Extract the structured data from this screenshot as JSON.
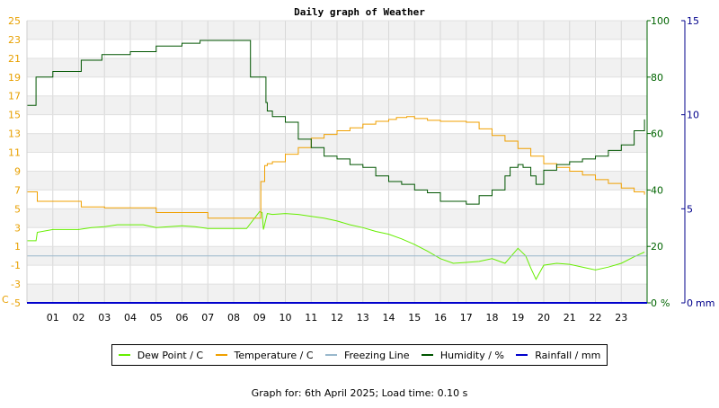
{
  "chart_data": {
    "type": "line",
    "title": "Daily graph of Weather",
    "left_axis": {
      "unit": "C",
      "ticks": [
        -5,
        -3,
        -1,
        1,
        3,
        5,
        7,
        9,
        11,
        13,
        15,
        17,
        19,
        21,
        23,
        25
      ],
      "range": [
        -5,
        25
      ],
      "color": "#e8a000"
    },
    "right_axis_1": {
      "unit": "%",
      "ticks": [
        0,
        20,
        40,
        60,
        80,
        100
      ],
      "range": [
        0,
        100
      ],
      "color": "#006400"
    },
    "right_axis_2": {
      "unit": "mm",
      "ticks": [
        0,
        5,
        10,
        15
      ],
      "range": [
        0,
        15
      ],
      "color": "#00008b"
    },
    "x_ticks": [
      "01",
      "02",
      "03",
      "04",
      "05",
      "06",
      "07",
      "08",
      "09",
      "10",
      "11",
      "12",
      "13",
      "14",
      "15",
      "16",
      "17",
      "18",
      "19",
      "20",
      "21",
      "22",
      "23"
    ],
    "x_range_hours": [
      0,
      24
    ],
    "grid": true,
    "legend_position": "bottom",
    "colors": {
      "dew_point": "#66ee00",
      "temperature": "#f0a000",
      "freezing_line": "#99b8cc",
      "humidity": "#005500",
      "rainfall": "#0000cc"
    },
    "series": [
      {
        "name": "Dew Point / C",
        "key": "dew_point",
        "axis": "left",
        "x": [
          0,
          0.35,
          0.4,
          1.0,
          1.5,
          2.0,
          2.5,
          3.0,
          3.5,
          4.0,
          4.5,
          5.0,
          5.5,
          6.0,
          6.5,
          7.0,
          7.5,
          8.0,
          8.5,
          9.0,
          9.1,
          9.15,
          9.3,
          9.5,
          10.0,
          10.5,
          11.0,
          11.5,
          12.0,
          12.5,
          13.0,
          13.5,
          14.0,
          14.5,
          15.0,
          15.5,
          16.0,
          16.5,
          17.0,
          17.5,
          18.0,
          18.5,
          19.0,
          19.3,
          19.5,
          19.7,
          20.0,
          20.5,
          21.0,
          21.5,
          22.0,
          22.5,
          23.0,
          23.5,
          23.9
        ],
        "y": [
          1.6,
          1.6,
          2.5,
          2.8,
          2.8,
          2.8,
          3.0,
          3.1,
          3.3,
          3.3,
          3.3,
          3.0,
          3.1,
          3.2,
          3.1,
          2.9,
          2.9,
          2.9,
          2.9,
          4.7,
          4.6,
          2.8,
          4.5,
          4.4,
          4.5,
          4.4,
          4.2,
          4.0,
          3.7,
          3.3,
          3.0,
          2.6,
          2.3,
          1.8,
          1.2,
          0.5,
          -0.3,
          -0.8,
          -0.7,
          -0.6,
          -0.3,
          -0.8,
          0.8,
          0.0,
          -1.3,
          -2.5,
          -1.0,
          -0.8,
          -0.9,
          -1.2,
          -1.5,
          -1.2,
          -0.8,
          -0.1,
          0.4
        ]
      },
      {
        "name": "Temperature / C",
        "key": "temperature",
        "axis": "left",
        "x": [
          0,
          0.35,
          0.4,
          1.0,
          2.0,
          2.1,
          3.0,
          4.0,
          4.9,
          5.0,
          6.0,
          6.9,
          7.0,
          8.0,
          8.7,
          9.05,
          9.1,
          9.2,
          9.3,
          9.5,
          10.0,
          10.5,
          11.0,
          11.5,
          12.0,
          12.5,
          13.0,
          13.5,
          14.0,
          14.3,
          14.7,
          15.0,
          15.5,
          16.0,
          16.5,
          17.0,
          17.5,
          18.0,
          18.5,
          19.0,
          19.5,
          20.0,
          20.5,
          21.0,
          21.5,
          22.0,
          22.5,
          23.0,
          23.5,
          23.9
        ],
        "y": [
          6.8,
          6.8,
          5.8,
          5.8,
          5.8,
          5.2,
          5.1,
          5.1,
          5.1,
          4.6,
          4.6,
          4.6,
          4.0,
          4.0,
          4.0,
          7.9,
          7.9,
          9.6,
          9.8,
          10.0,
          10.8,
          11.5,
          12.5,
          12.9,
          13.3,
          13.6,
          14.0,
          14.3,
          14.5,
          14.7,
          14.8,
          14.6,
          14.4,
          14.3,
          14.3,
          14.2,
          13.5,
          12.8,
          12.2,
          11.4,
          10.6,
          9.8,
          9.4,
          9.0,
          8.6,
          8.1,
          7.7,
          7.2,
          6.8,
          6.5
        ]
      },
      {
        "name": "Freezing Line",
        "key": "freezing_line",
        "axis": "left",
        "x": [
          0,
          24
        ],
        "y": [
          0,
          0
        ]
      },
      {
        "name": "Humidity / %",
        "key": "humidity",
        "axis": "right1",
        "x": [
          0,
          0.3,
          0.35,
          0.8,
          1.0,
          1.8,
          2.1,
          2.6,
          2.9,
          3.2,
          4.0,
          4.5,
          4.9,
          5.0,
          5.3,
          6.0,
          6.6,
          6.7,
          7.2,
          8.0,
          8.6,
          8.65,
          9.2,
          9.25,
          9.3,
          9.5,
          10.0,
          10.5,
          11.0,
          11.5,
          12.0,
          12.5,
          13.0,
          13.5,
          14.0,
          14.5,
          15.0,
          15.5,
          16.0,
          16.5,
          17.0,
          17.5,
          18.0,
          18.5,
          18.7,
          19.0,
          19.2,
          19.5,
          19.7,
          20.0,
          20.5,
          21.0,
          21.5,
          22.0,
          22.5,
          23.0,
          23.5,
          23.9
        ],
        "y": [
          70,
          70,
          80,
          80,
          82,
          82,
          86,
          86,
          88,
          88,
          89,
          89,
          89,
          91,
          91,
          92,
          92,
          93,
          93,
          93,
          93,
          80,
          80,
          71,
          68,
          66,
          64,
          58,
          55,
          52,
          51,
          49,
          48,
          45,
          43,
          42,
          40,
          39,
          36,
          36,
          35,
          38,
          40,
          45,
          48,
          49,
          48,
          45,
          42,
          47,
          49,
          50,
          51,
          52,
          54,
          56,
          61,
          65
        ]
      },
      {
        "name": "Rainfall / mm",
        "key": "rainfall",
        "axis": "right2",
        "x": [
          0,
          24
        ],
        "y": [
          0,
          0
        ]
      }
    ]
  },
  "footer": "Graph for: 6th April 2025; Load time: 0.10 s"
}
